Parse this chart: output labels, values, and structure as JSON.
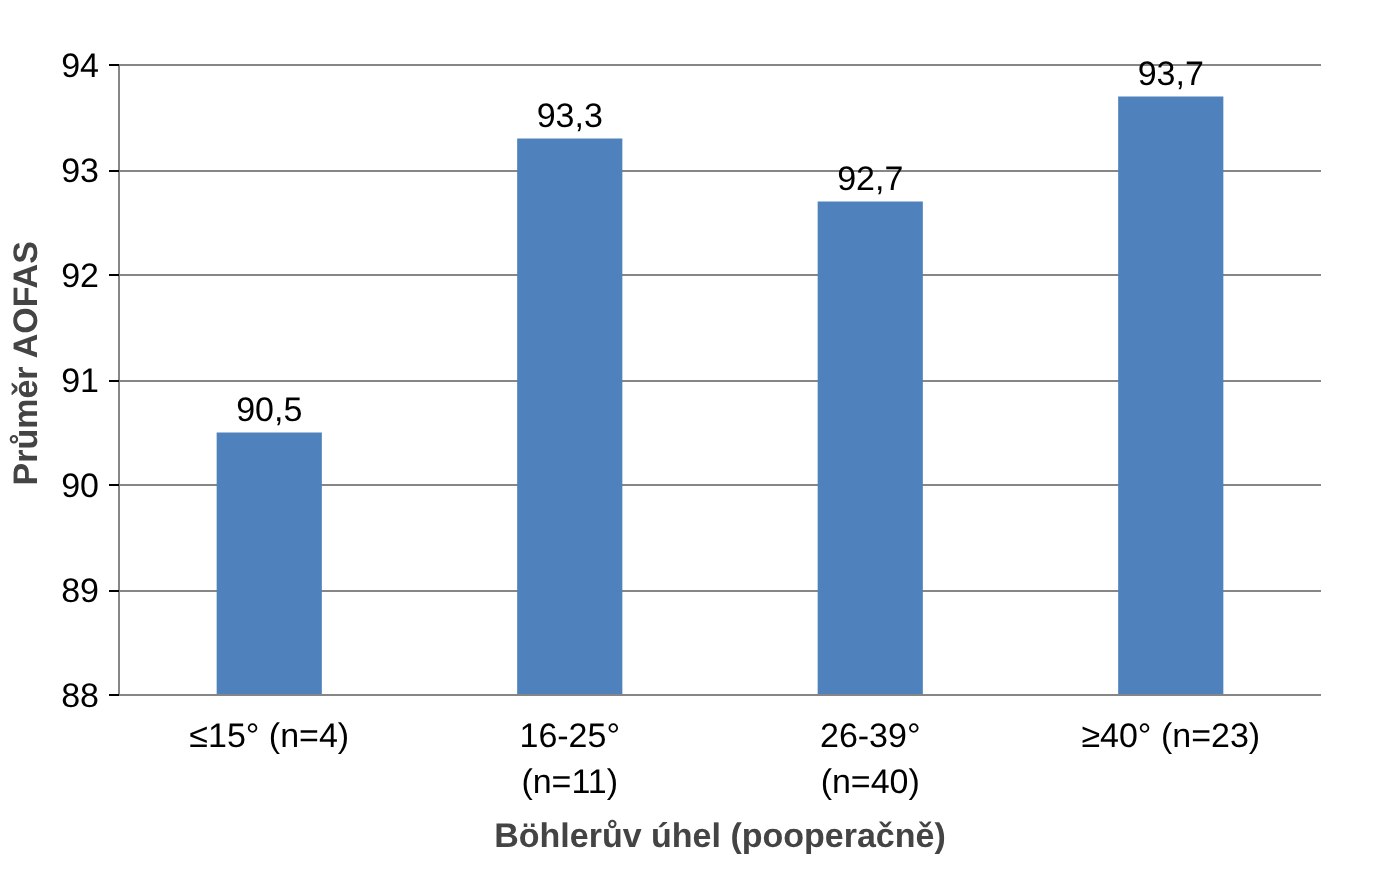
{
  "chart_data": {
    "type": "bar",
    "xlabel": "Böhlerův úhel (pooperačně)",
    "ylabel": "Průměr  AOFAS",
    "categories": [
      "≤15° (n=4)",
      "16-25°\n(n=11)",
      "26-39°\n(n=40)",
      "≥40° (n=23)"
    ],
    "values": [
      90.5,
      93.3,
      92.7,
      93.7
    ],
    "value_labels": [
      "90,5",
      "93,3",
      "92,7",
      "93,7"
    ],
    "color": "#4f81bd",
    "ylim": [
      88,
      94
    ],
    "yticks": [
      88,
      89,
      90,
      91,
      92,
      93,
      94
    ],
    "grid": "y"
  }
}
